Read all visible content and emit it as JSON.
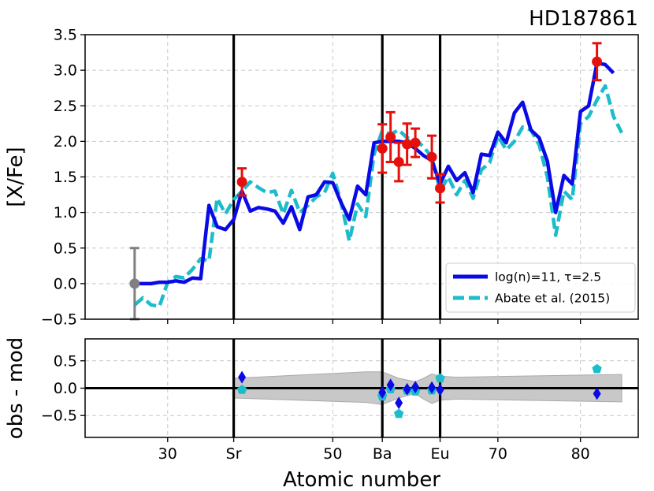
{
  "chart_data": [
    {
      "type": "line",
      "title": "HD187861",
      "xlabel": "",
      "ylabel": "[X/Fe]",
      "xlim": [
        20,
        87
      ],
      "ylim": [
        -0.5,
        3.5
      ],
      "yticks": [
        -0.5,
        0.0,
        0.5,
        1.0,
        1.5,
        2.0,
        2.5,
        3.0,
        3.5
      ],
      "ytick_labels": [
        "−0.5",
        "0.0",
        "0.5",
        "1.0",
        "1.5",
        "2.0",
        "2.5",
        "3.0",
        "3.5"
      ],
      "grid": true,
      "legend_position": "lower-right",
      "vlines": [
        38,
        56,
        63
      ],
      "series": [
        {
          "name": "log(n)=11, τ=2.5",
          "style": "solid",
          "color": "#0a0ae6",
          "x": [
            26,
            27,
            28,
            29,
            30,
            31,
            32,
            33,
            34,
            35,
            36,
            37,
            38,
            39,
            40,
            41,
            42,
            43,
            44,
            45,
            46,
            47,
            48,
            49,
            50,
            51,
            52,
            53,
            54,
            55,
            56,
            57,
            58,
            59,
            60,
            61,
            62,
            63,
            64,
            65,
            66,
            67,
            68,
            69,
            70,
            71,
            72,
            73,
            74,
            75,
            76,
            77,
            78,
            79,
            80,
            81,
            82,
            83,
            84
          ],
          "y": [
            0.0,
            0.0,
            0.0,
            0.02,
            0.02,
            0.04,
            0.02,
            0.08,
            0.07,
            1.1,
            0.8,
            0.76,
            0.9,
            1.3,
            1.02,
            1.07,
            1.05,
            1.02,
            0.85,
            1.08,
            0.76,
            1.22,
            1.25,
            1.43,
            1.42,
            1.14,
            0.9,
            1.37,
            1.25,
            1.98,
            2.0,
            2.0,
            2.0,
            1.98,
            1.9,
            1.8,
            1.73,
            1.4,
            1.65,
            1.45,
            1.56,
            1.28,
            1.82,
            1.8,
            2.13,
            1.98,
            2.4,
            2.55,
            2.16,
            2.05,
            1.72,
            1.0,
            1.52,
            1.4,
            2.42,
            2.5,
            3.1,
            3.08,
            2.96
          ]
        },
        {
          "name": "Abate et al. (2015)",
          "style": "dashed",
          "color": "#1cbccb",
          "x": [
            26,
            27,
            28,
            29,
            30,
            31,
            32,
            33,
            34,
            35,
            36,
            37,
            38,
            39,
            40,
            41,
            42,
            43,
            44,
            45,
            46,
            47,
            48,
            49,
            50,
            51,
            52,
            53,
            54,
            55,
            56,
            57,
            58,
            59,
            60,
            61,
            62,
            63,
            64,
            65,
            66,
            67,
            68,
            69,
            70,
            71,
            72,
            73,
            74,
            75,
            76,
            77,
            78,
            79,
            80,
            81,
            82,
            83,
            84,
            85
          ],
          "y": [
            -0.3,
            -0.2,
            -0.3,
            -0.32,
            0.02,
            0.1,
            0.08,
            0.2,
            0.35,
            0.32,
            1.2,
            0.98,
            1.18,
            1.3,
            1.43,
            1.35,
            1.28,
            1.3,
            0.98,
            1.31,
            1.0,
            1.1,
            1.22,
            1.28,
            1.55,
            1.15,
            0.6,
            1.12,
            0.94,
            1.82,
            2.15,
            2.1,
            2.16,
            2.05,
            2.03,
            1.92,
            1.78,
            1.3,
            1.5,
            1.25,
            1.45,
            1.2,
            1.6,
            1.7,
            2.08,
            1.88,
            2.0,
            2.2,
            2.16,
            1.95,
            1.5,
            0.68,
            1.3,
            1.18,
            2.25,
            2.35,
            2.58,
            2.78,
            2.35,
            2.12
          ]
        }
      ],
      "observations": [
        {
          "x": 26,
          "y": 0.0,
          "err": 0.5,
          "color": "#808080"
        },
        {
          "x": 39,
          "y": 1.43,
          "err": 0.19,
          "color": "#e5100c"
        },
        {
          "x": 56,
          "y": 1.9,
          "err": 0.34,
          "color": "#e5100c"
        },
        {
          "x": 57,
          "y": 2.06,
          "err": 0.35,
          "color": "#e5100c"
        },
        {
          "x": 58,
          "y": 1.71,
          "err": 0.27,
          "color": "#e5100c"
        },
        {
          "x": 59,
          "y": 1.96,
          "err": 0.29,
          "color": "#e5100c"
        },
        {
          "x": 60,
          "y": 1.98,
          "err": 0.2,
          "color": "#e5100c"
        },
        {
          "x": 62,
          "y": 1.78,
          "err": 0.3,
          "color": "#e5100c"
        },
        {
          "x": 63,
          "y": 1.34,
          "err": 0.2,
          "color": "#e5100c"
        },
        {
          "x": 82,
          "y": 3.12,
          "err": 0.26,
          "color": "#e5100c"
        }
      ]
    },
    {
      "type": "scatter",
      "xlabel": "Atomic number",
      "ylabel": "obs - mod",
      "xlim": [
        20,
        87
      ],
      "ylim": [
        -0.9,
        0.9
      ],
      "yticks": [
        -0.5,
        0.0,
        0.5
      ],
      "ytick_labels": [
        "−0.5",
        "0.0",
        "0.5"
      ],
      "xticks": [
        30,
        38,
        50,
        56,
        63,
        70,
        80
      ],
      "xtick_labels": [
        "30",
        "Sr",
        "50",
        "Ba",
        "Eu",
        "70",
        "80"
      ],
      "grid": true,
      "vlines": [
        38,
        56,
        63
      ],
      "hline": 0.0,
      "uncertainty_band": {
        "color": "#c8c8c8",
        "x": [
          38,
          54,
          56,
          58,
          60,
          61,
          62,
          63,
          65,
          85
        ],
        "upper": [
          0.18,
          0.3,
          0.3,
          0.18,
          0.12,
          0.18,
          0.26,
          0.22,
          0.2,
          0.25
        ],
        "lower": [
          -0.18,
          -0.26,
          -0.3,
          -0.18,
          -0.1,
          -0.2,
          -0.28,
          -0.22,
          -0.2,
          -0.25
        ]
      },
      "series": [
        {
          "name": "log(n)=11, τ=2.5",
          "marker": "diamond",
          "color": "#0a0ae6",
          "x": [
            39,
            56,
            57,
            58,
            59,
            60,
            62,
            63,
            82
          ],
          "y": [
            0.2,
            -0.08,
            0.06,
            -0.27,
            -0.02,
            0.02,
            0.01,
            -0.03,
            -0.1
          ]
        },
        {
          "name": "Abate et al. (2015)",
          "marker": "pentagon",
          "color": "#1cbccb",
          "x": [
            39,
            56,
            57,
            58,
            59,
            60,
            62,
            63,
            82
          ],
          "y": [
            -0.03,
            -0.15,
            -0.02,
            -0.47,
            -0.04,
            -0.06,
            -0.04,
            0.18,
            0.35
          ]
        }
      ]
    }
  ]
}
